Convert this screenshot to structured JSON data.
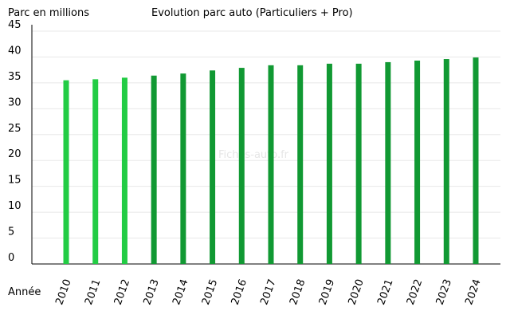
{
  "chart_data": {
    "type": "bar",
    "title": "Evolution parc auto (Particuliers + Pro)",
    "y_label": "Parc en millions",
    "x_label": "Année",
    "watermark": "Fiches-auto.fr",
    "categories": [
      "2010",
      "2011",
      "2012",
      "2013",
      "2014",
      "2015",
      "2016",
      "2017",
      "2018",
      "2019",
      "2020",
      "2021",
      "2022",
      "2023",
      "2024"
    ],
    "values": [
      35.5,
      35.7,
      36.0,
      36.4,
      36.8,
      37.4,
      37.9,
      38.4,
      38.4,
      38.7,
      38.7,
      39.0,
      39.3,
      39.6,
      39.9
    ],
    "colors": [
      "#22cc44",
      "#22cc44",
      "#22cc44",
      "#119933",
      "#119933",
      "#119933",
      "#119933",
      "#119933",
      "#119933",
      "#119933",
      "#119933",
      "#119933",
      "#119933",
      "#119933",
      "#119933"
    ],
    "ylim": [
      0,
      45
    ],
    "yticks": [
      0,
      5,
      10,
      15,
      20,
      25,
      30,
      35,
      40,
      45
    ],
    "grid": true
  }
}
